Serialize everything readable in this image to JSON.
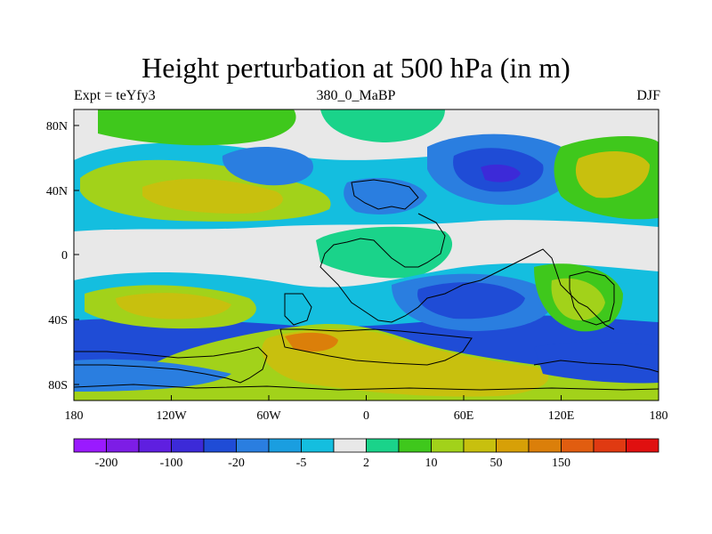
{
  "title": "Height perturbation at 500 hPa (in m)",
  "subtitle_left": "Expt = teYfy3",
  "subtitle_center": "380_0_MaBP",
  "subtitle_right": "DJF",
  "axes": {
    "lon_ticks": [
      "180",
      "120W",
      "60W",
      "0",
      "60E",
      "120E",
      "180"
    ],
    "lat_ticks": [
      "80N",
      "40N",
      "0",
      "40S",
      "80S"
    ]
  },
  "colorbar": {
    "colors": [
      "#9a1aff",
      "#7d1de6",
      "#5f1fe0",
      "#3c2ad8",
      "#1f4cd6",
      "#2a7ee0",
      "#1a9ee0",
      "#14bedf",
      "#e8e8e8",
      "#1ad38a",
      "#3fc81c",
      "#a2d21a",
      "#c8c00e",
      "#d7a007",
      "#db7f0a",
      "#e15d10",
      "#e03a12",
      "#e01010"
    ],
    "labels": [
      "-200",
      "-100",
      "-20",
      "-5",
      "2",
      "10",
      "50",
      "150"
    ]
  }
}
